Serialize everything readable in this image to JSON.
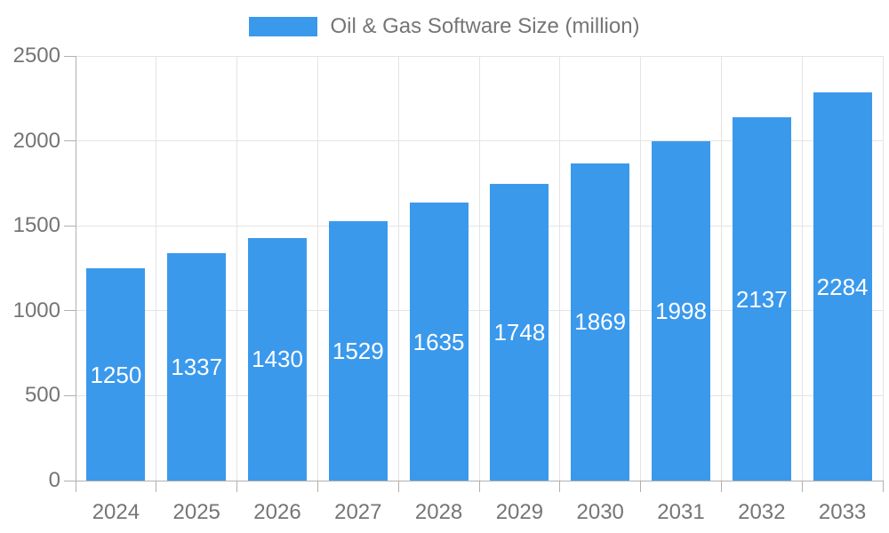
{
  "chart_data": {
    "type": "bar",
    "title": "Oil & Gas Software Size (million)",
    "legend": {
      "label": "Oil & Gas Software Size (million)",
      "position": "top"
    },
    "categories": [
      "2024",
      "2025",
      "2026",
      "2027",
      "2028",
      "2029",
      "2030",
      "2031",
      "2032",
      "2033"
    ],
    "values": [
      1250,
      1337,
      1430,
      1529,
      1635,
      1748,
      1869,
      1998,
      2137,
      2284
    ],
    "xlabel": "",
    "ylabel": "",
    "ylim": [
      0,
      2500
    ],
    "yticks": [
      0,
      500,
      1000,
      1500,
      2000,
      2500
    ],
    "grid": true,
    "colors": {
      "bar": "#3b99ec",
      "grid": "#e4e4e4",
      "axis": "#b0b0b0",
      "tick_text": "#757575",
      "value_label": "#ffffff",
      "background": "#ffffff"
    }
  }
}
